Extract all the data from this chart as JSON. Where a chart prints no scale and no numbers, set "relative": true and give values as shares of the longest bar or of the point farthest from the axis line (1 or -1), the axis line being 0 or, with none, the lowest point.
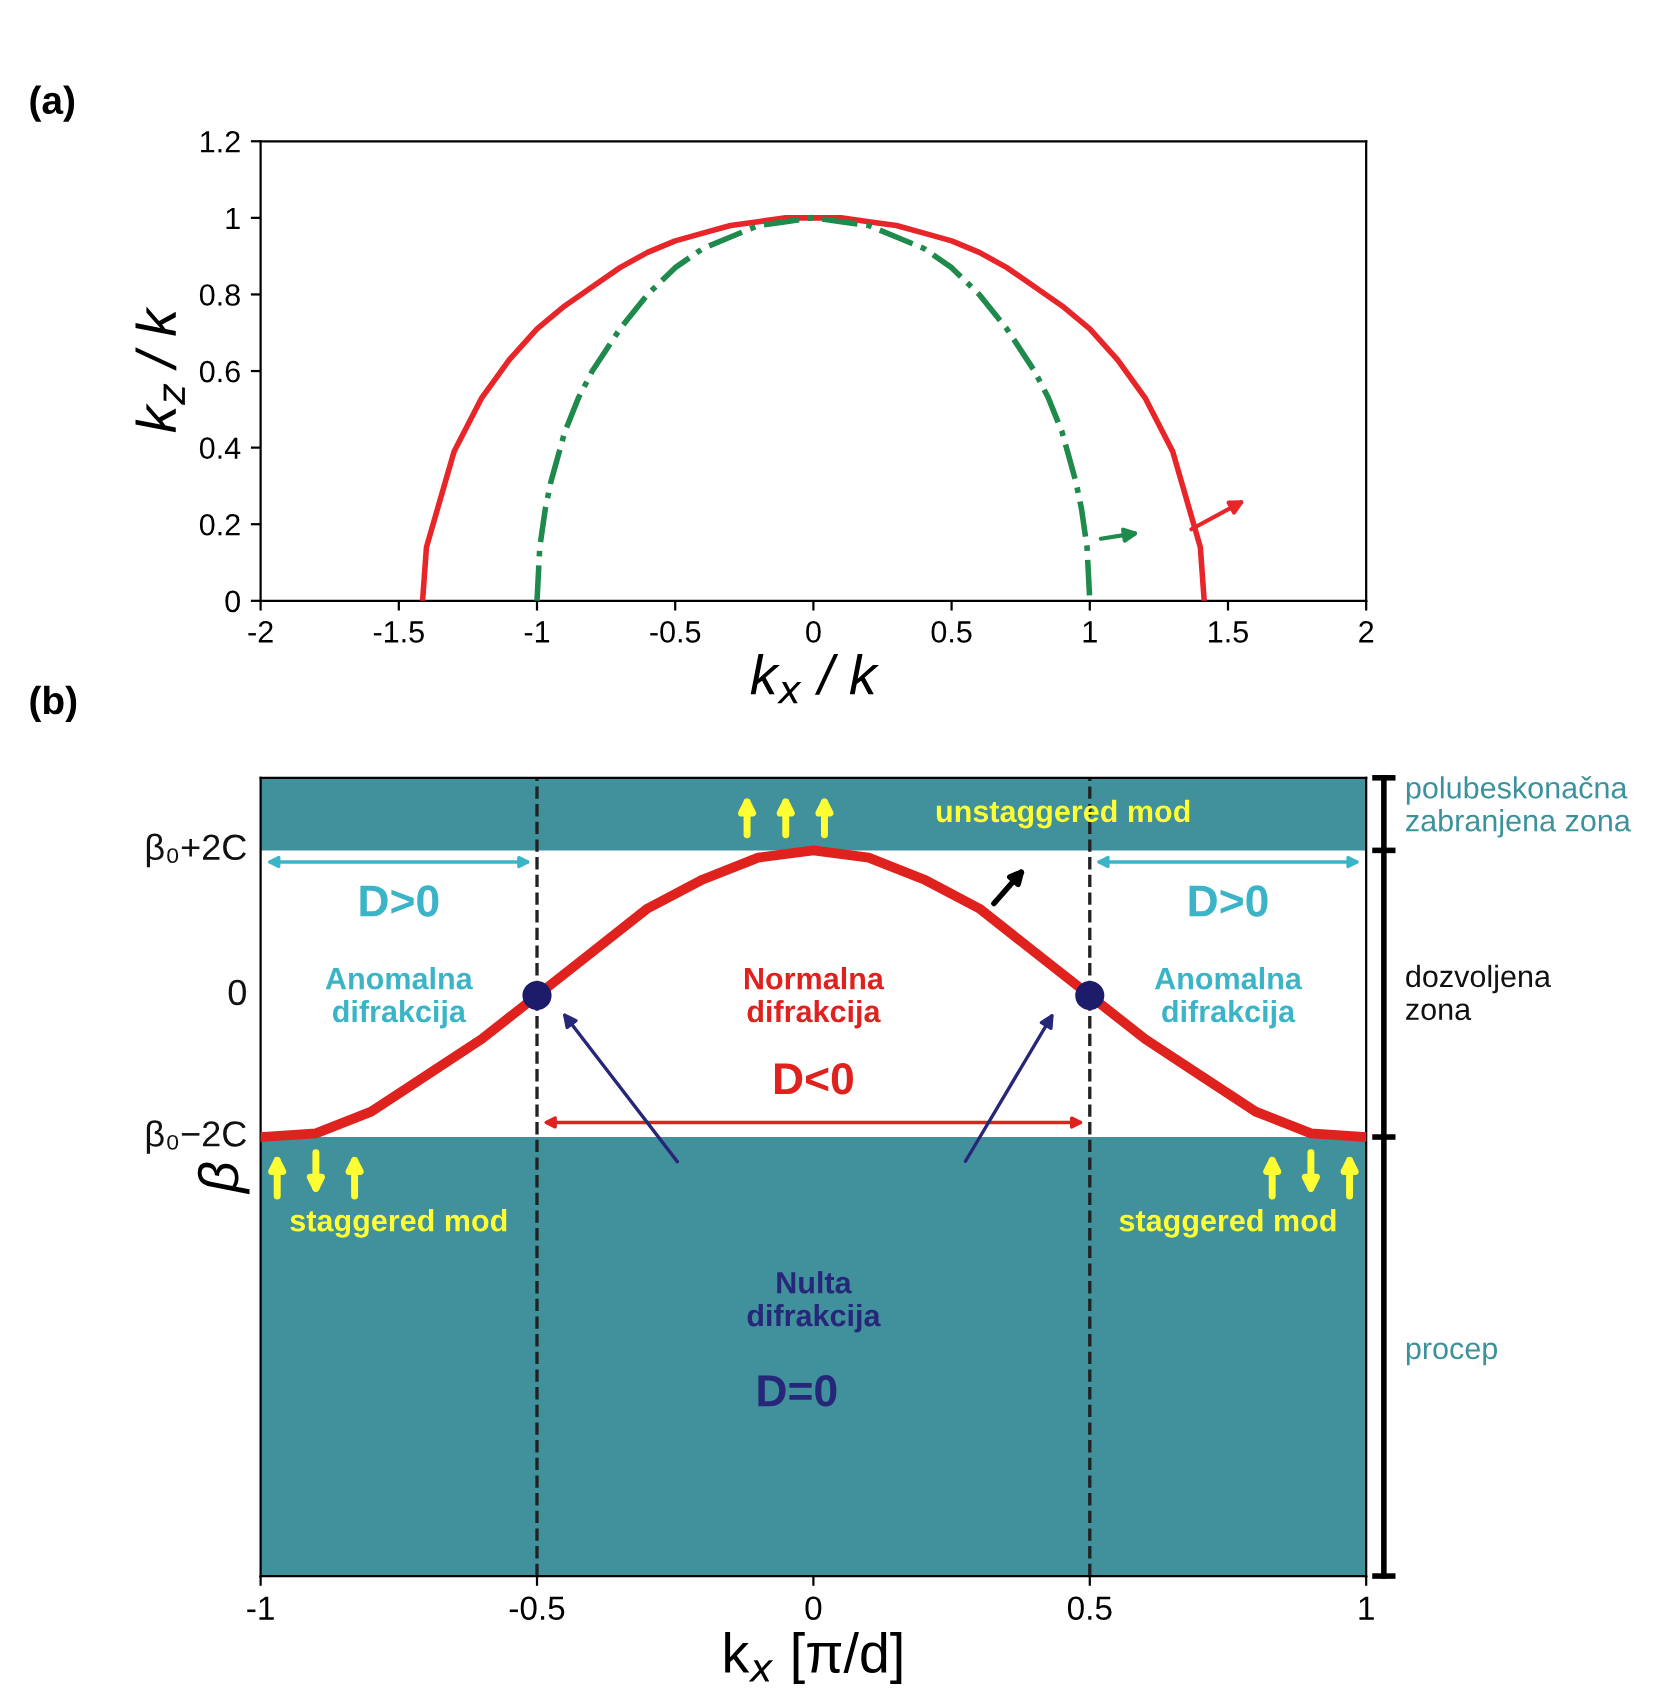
{
  "chart_data": [
    {
      "type": "line",
      "title": "(a)",
      "xlabel": "k$_{x}$ / k",
      "ylabel": "k$_{z}$ / k",
      "xlim": [
        -2,
        2
      ],
      "xticks": [
        -2,
        -1.5,
        -1,
        -0.5,
        0,
        0.5,
        1,
        1.5,
        2
      ],
      "ylim": [
        0,
        1.2
      ],
      "yticks": [
        0,
        0.2,
        0.4,
        0.6,
        0.8,
        1,
        1.2
      ],
      "grid": false,
      "series": [
        {
          "color": "#e8262a",
          "line_style": "solid",
          "x": [
            -1.414,
            -1.4,
            -1.3,
            -1.2,
            -1.1,
            -1.0,
            -0.9,
            -0.8,
            -0.7,
            -0.6,
            -0.5,
            -0.4,
            -0.3,
            -0.2,
            -0.1,
            0,
            0.1,
            0.2,
            0.3,
            0.4,
            0.5,
            0.6,
            0.7,
            0.8,
            0.9,
            1.0,
            1.1,
            1.2,
            1.3,
            1.4,
            1.414
          ],
          "values": [
            0,
            0.14,
            0.39,
            0.53,
            0.63,
            0.71,
            0.77,
            0.82,
            0.87,
            0.91,
            0.94,
            0.96,
            0.98,
            0.99,
            1.0,
            1.0,
            1.0,
            0.99,
            0.98,
            0.96,
            0.94,
            0.91,
            0.87,
            0.82,
            0.77,
            0.71,
            0.63,
            0.53,
            0.39,
            0.14,
            0
          ]
        },
        {
          "color": "#1e8a4c",
          "line_style": "dashdot",
          "x": [
            -1.0,
            -0.99,
            -0.97,
            -0.95,
            -0.9,
            -0.85,
            -0.8,
            -0.7,
            -0.6,
            -0.5,
            -0.4,
            -0.3,
            -0.2,
            -0.1,
            0,
            0.1,
            0.2,
            0.3,
            0.4,
            0.5,
            0.6,
            0.7,
            0.8,
            0.85,
            0.9,
            0.95,
            0.97,
            0.99,
            1.0
          ],
          "values": [
            0,
            0.14,
            0.24,
            0.31,
            0.44,
            0.53,
            0.6,
            0.71,
            0.8,
            0.87,
            0.92,
            0.95,
            0.98,
            0.99,
            1.0,
            0.99,
            0.98,
            0.95,
            0.92,
            0.87,
            0.8,
            0.71,
            0.6,
            0.53,
            0.44,
            0.31,
            0.24,
            0.14,
            0
          ]
        }
      ]
    },
    {
      "type": "line",
      "title": "(b)",
      "xlabel": "k$_{x}$ [π/d]",
      "ylabel": "β",
      "xlim": [
        -1,
        1
      ],
      "xticks": [
        -1,
        -0.5,
        0,
        0.5,
        1
      ],
      "relative": true,
      "grid": false,
      "series": [
        {
          "color": "#e0221f",
          "line_style": "solid",
          "x": [
            -1,
            -0.9,
            -0.8,
            -0.7,
            -0.6,
            -0.5,
            -0.4,
            -0.3,
            -0.2,
            -0.1,
            0,
            0.1,
            0.2,
            0.3,
            0.4,
            0.5,
            0.6,
            0.7,
            0.8,
            0.9,
            1
          ],
          "values": [
            0.605,
            0.61,
            0.64,
            0.69,
            0.74,
            0.8,
            0.86,
            0.92,
            0.96,
            0.99,
            1,
            0.99,
            0.96,
            0.92,
            0.86,
            0.8,
            0.74,
            0.69,
            0.64,
            0.61,
            0.605
          ]
        },
        {
          "type": "scatter",
          "color": "#1c1c6b",
          "marker": "circle",
          "x": [
            -0.5,
            0.5
          ],
          "values": [
            0.8,
            0.8
          ]
        }
      ],
      "ref_lines": [
        {
          "axis": "x",
          "value": -0.5,
          "color": "#222222",
          "line_style": "dashed"
        },
        {
          "axis": "x",
          "value": 0.5,
          "color": "#222222",
          "line_style": "dashed"
        }
      ],
      "bands": [
        {
          "axis": "y",
          "from": 1,
          "to": 1.1,
          "color": "#40919b"
        },
        {
          "axis": "y",
          "from": 0,
          "to": 0.605,
          "color": "#40919b"
        }
      ],
      "annotations": [
        "β₀+2C",
        "0",
        "β₀−2C",
        "unstaggered mod",
        "D>0",
        "D>0",
        "Anomalna\ndifrakcija",
        "Anomalna\ndifrakcija",
        "Normalna\ndifrakcija",
        "D<0",
        "staggered mod",
        "staggered mod",
        "Nulta\ndifrakcija",
        "D=0",
        "polubeskonačna\nzabranjena zona",
        "dozvoljena\nzona",
        "procep"
      ]
    }
  ]
}
